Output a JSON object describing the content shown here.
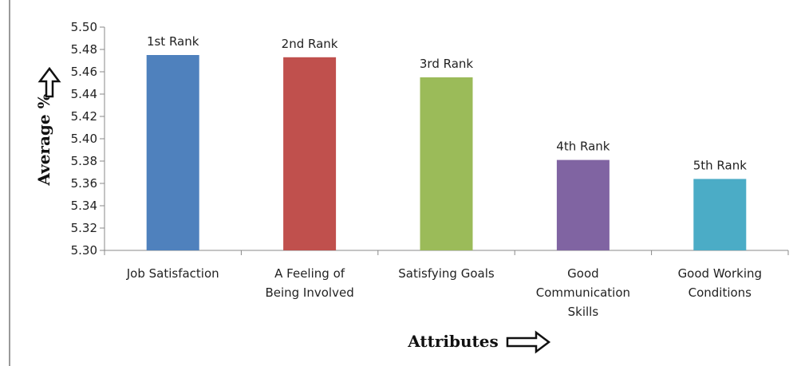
{
  "chart_data": {
    "type": "bar",
    "title": "",
    "xlabel": "Attributes",
    "ylabel": "Average %",
    "ylim": [
      5.3,
      5.5
    ],
    "yticks": [
      "5.30",
      "5.32",
      "5.34",
      "5.36",
      "5.38",
      "5.40",
      "5.42",
      "5.44",
      "5.46",
      "5.48",
      "5.50"
    ],
    "grid": false,
    "legend": "none",
    "categories": [
      [
        "Job Satisfaction"
      ],
      [
        "A Feeling of",
        "Being Involved"
      ],
      [
        "Satisfying Goals"
      ],
      [
        "Good",
        "Communication",
        "Skills"
      ],
      [
        "Good Working",
        "Conditions"
      ]
    ],
    "values": [
      5.475,
      5.473,
      5.455,
      5.381,
      5.364
    ],
    "data_labels": [
      "1st Rank",
      "2nd Rank",
      "3rd Rank",
      "4th Rank",
      "5th Rank"
    ],
    "colors": [
      "#4f81bd",
      "#c0504d",
      "#9bbb59",
      "#8064a2",
      "#4bacc6"
    ]
  }
}
